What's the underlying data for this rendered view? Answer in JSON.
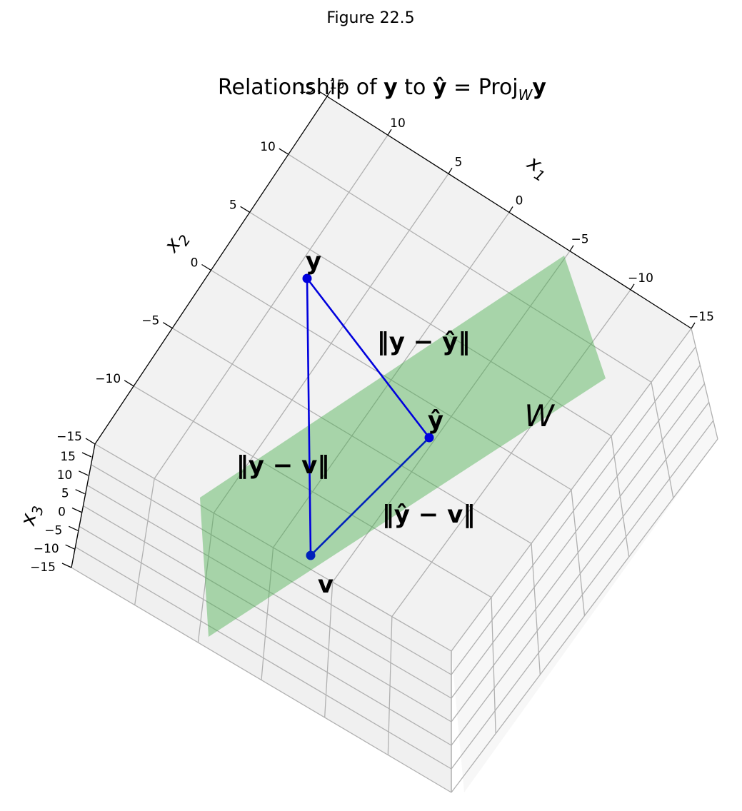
{
  "figure_label": "Figure 22.5",
  "chart_data": {
    "type": "scatter",
    "projection": "3d",
    "title": "Relationship of y to ŷ = Proj_W y",
    "title_parts": {
      "prefix": "Relationship of ",
      "y": "y",
      "mid": " to ",
      "yhat": "ŷ",
      "eq": " = Proj",
      "sub": "W",
      "y2": "y"
    },
    "xlabel": "x1",
    "ylabel": "x2",
    "zlabel": "x3",
    "xlim": [
      -15,
      15
    ],
    "ylim": [
      -15,
      15
    ],
    "zlim": [
      -15,
      15
    ],
    "x_ticks": [
      "15",
      "10",
      "5",
      "0",
      "−5",
      "−10",
      "−15"
    ],
    "y_ticks": [
      "15",
      "10",
      "5",
      "0",
      "−5",
      "−10",
      "−15"
    ],
    "z_ticks": [
      "15",
      "10",
      "5",
      "0",
      "−5",
      "−10",
      "−15"
    ],
    "grid": true,
    "plane": {
      "label": "W",
      "color": "#4caf50",
      "opacity": 0.45
    },
    "points": [
      {
        "name": "y",
        "label": "y",
        "color": "#0000dd"
      },
      {
        "name": "yhat",
        "label": "ŷ",
        "color": "#0000dd"
      },
      {
        "name": "v",
        "label": "v",
        "color": "#0022bb"
      }
    ],
    "segments": [
      {
        "from": "y",
        "to": "yhat",
        "label": "‖y − ŷ‖"
      },
      {
        "from": "y",
        "to": "v",
        "label": "‖y − v‖"
      },
      {
        "from": "yhat",
        "to": "v",
        "label": "‖ŷ − v‖"
      }
    ]
  }
}
